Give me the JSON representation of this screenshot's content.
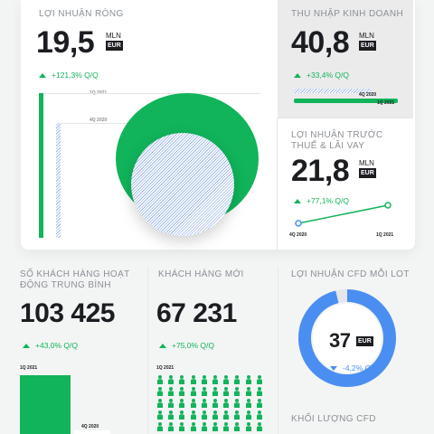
{
  "colors": {
    "green": "#11b45a",
    "blue": "#4b8ef1",
    "hatch": "#9db6e8"
  },
  "net_profit": {
    "label": "LỢI NHUẬN RÒNG",
    "value": "19,5",
    "unit_top": "MLN",
    "unit_box": "EUR",
    "delta": "+121,3% Q/Q",
    "period_a": "1Q 2021",
    "period_b": "4Q 2020"
  },
  "business_income": {
    "label": "THU NHẬP KINH DOANH",
    "value": "40,8",
    "unit_top": "MLN",
    "unit_box": "EUR",
    "delta": "+33,4% Q/Q",
    "period_a": "4Q 2020",
    "period_b": "1Q 2021",
    "progress_4q2020": 0.75,
    "progress_1q2021": 1.0
  },
  "ebt": {
    "label": "LỢI NHUẬN TRƯỚC THUẾ & LÃI VAY",
    "value": "21,8",
    "unit_top": "MLN",
    "unit_box": "EUR",
    "delta": "+77,1% Q/Q",
    "period_a": "4Q 2020",
    "period_b": "1Q 2021"
  },
  "avg_clients": {
    "label": "SỐ KHÁCH HÀNG HOẠT ĐỘNG TRUNG BÌNH",
    "value": "103 425",
    "delta": "+43,0% Q/Q",
    "period_a": "1Q 2021",
    "period_b": "4Q 2020"
  },
  "new_clients": {
    "label": "KHÁCH HÀNG MỚI",
    "value": "67 231",
    "delta": "+75,0% Q/Q",
    "period_a": "1Q 2021"
  },
  "cfd_profit": {
    "label": "LỢI NHUẬN CFD MỖI LOT",
    "value": "37",
    "unit_box": "EUR",
    "delta": "-4,2% Q/Q",
    "ring_fill": 0.96
  },
  "cfd_volume": {
    "label": "KHỐI LƯỢNG CFD"
  }
}
